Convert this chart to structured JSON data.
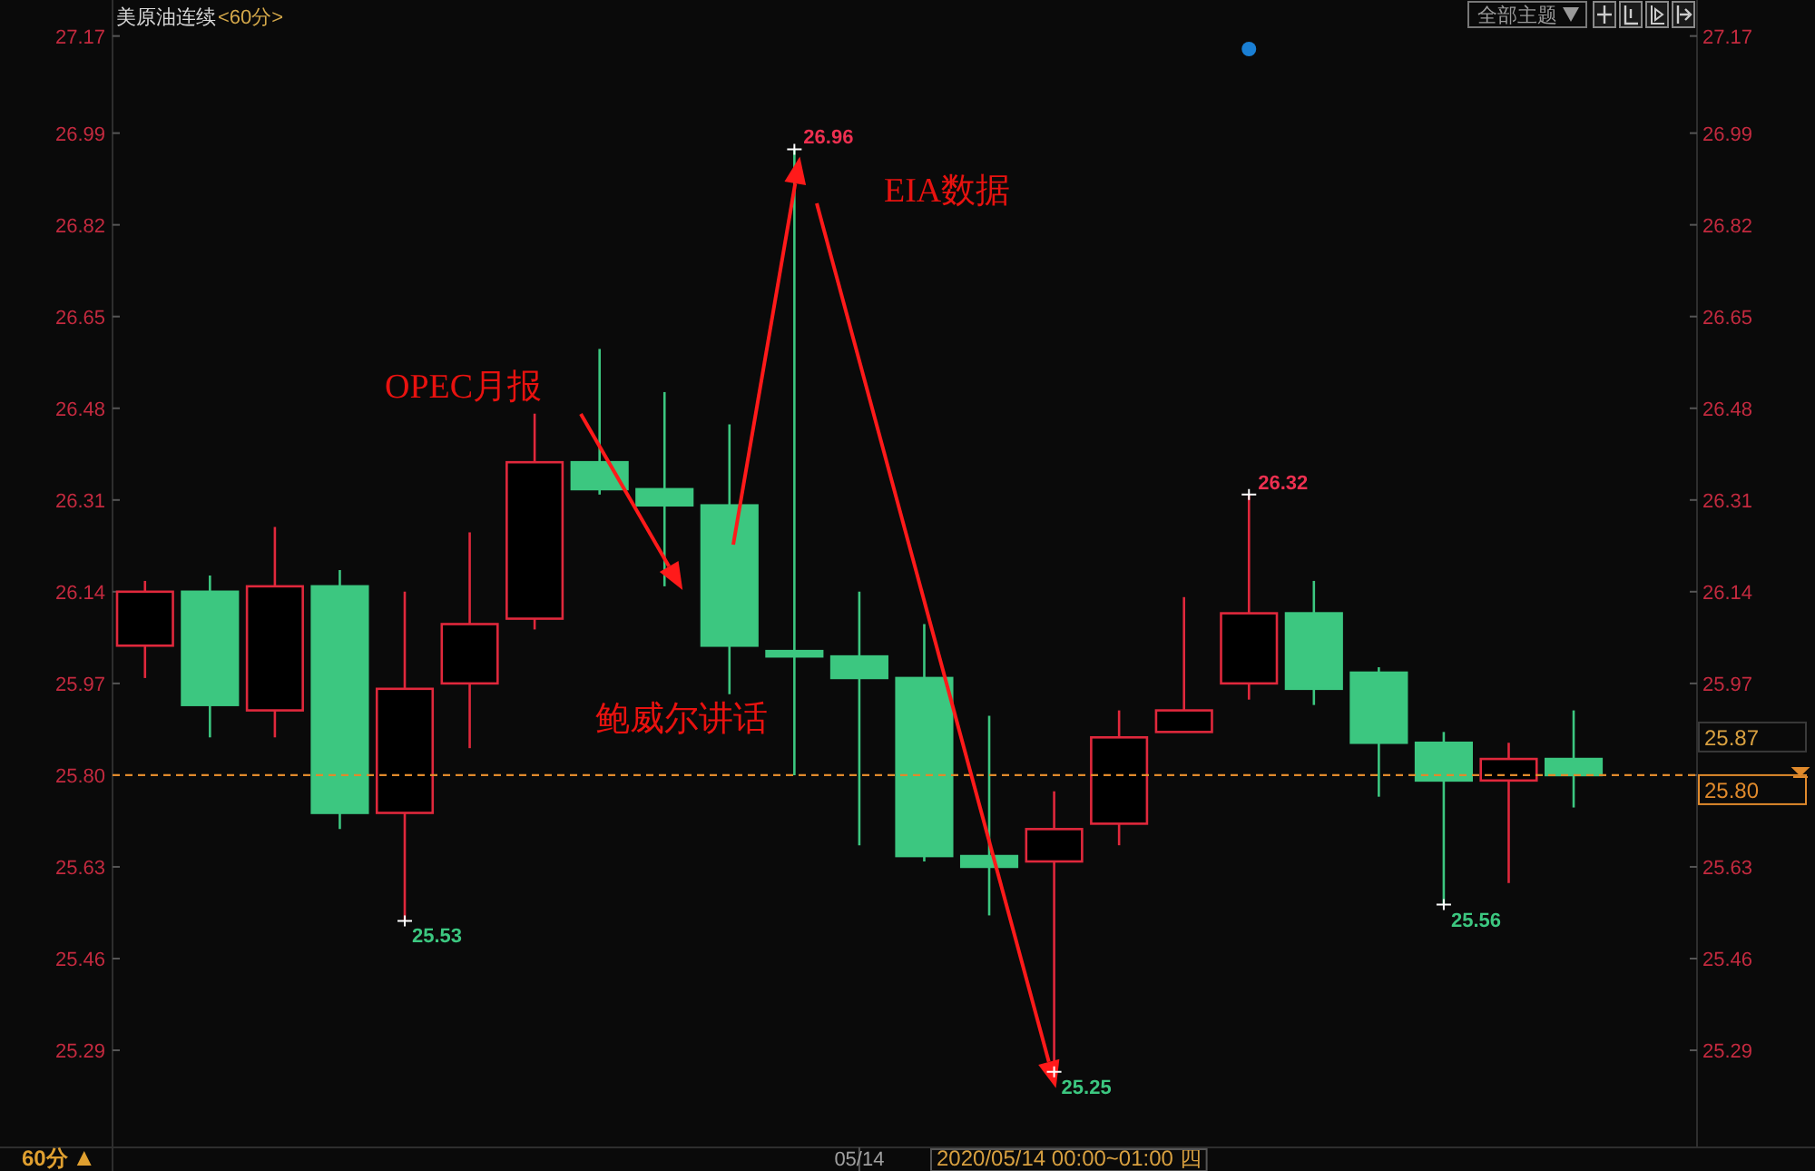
{
  "chart_data": {
    "type": "candlestick",
    "title": "美原油连续",
    "subtitle": "<60分>",
    "categories": [
      null,
      null,
      null,
      null,
      null,
      null,
      null,
      null,
      null,
      null,
      null,
      "05/14",
      null,
      null,
      null,
      null,
      null,
      null,
      null,
      null,
      null,
      null,
      null
    ],
    "ohlc": [
      [
        26.04,
        26.16,
        25.98,
        26.14
      ],
      [
        26.14,
        26.17,
        25.87,
        25.93
      ],
      [
        25.92,
        26.26,
        25.87,
        26.15
      ],
      [
        26.15,
        26.18,
        25.7,
        25.73
      ],
      [
        25.73,
        26.14,
        25.53,
        25.96
      ],
      [
        25.97,
        26.25,
        25.85,
        26.08
      ],
      [
        26.09,
        26.47,
        26.07,
        26.38
      ],
      [
        26.38,
        26.59,
        26.32,
        26.33
      ],
      [
        26.33,
        26.51,
        26.15,
        26.3
      ],
      [
        26.3,
        26.45,
        25.95,
        26.04
      ],
      [
        26.03,
        26.96,
        25.8,
        26.02
      ],
      [
        26.02,
        26.14,
        25.67,
        25.98
      ],
      [
        25.98,
        26.08,
        25.64,
        25.65
      ],
      [
        25.65,
        25.91,
        25.54,
        25.63
      ],
      [
        25.64,
        25.77,
        25.25,
        25.7
      ],
      [
        25.71,
        25.92,
        25.67,
        25.87
      ],
      [
        25.88,
        26.13,
        25.88,
        25.92
      ],
      [
        25.97,
        26.32,
        25.94,
        26.1
      ],
      [
        26.1,
        26.16,
        25.93,
        25.96
      ],
      [
        25.99,
        26.0,
        25.76,
        25.86
      ],
      [
        25.86,
        25.88,
        25.56,
        25.79
      ],
      [
        25.79,
        25.86,
        25.6,
        25.83
      ],
      [
        25.83,
        25.92,
        25.74,
        25.8
      ]
    ],
    "colors": [
      "#e0283c",
      "#3cc780",
      "#e0283c",
      "#3cc780",
      "#e0283c",
      "#e0283c",
      "#e0283c",
      "#3cc780",
      "#3cc780",
      "#3cc780",
      "#3cc780",
      "#3cc780",
      "#3cc780",
      "#3cc780",
      "#e0283c",
      "#e0283c",
      "#e0283c",
      "#e0283c",
      "#3cc780",
      "#3cc780",
      "#3cc780",
      "#e0283c",
      "#3cc780"
    ],
    "ylim": [
      25.11,
      27.23
    ],
    "yticks": [
      27.17,
      26.99,
      26.82,
      26.65,
      26.48,
      26.31,
      26.14,
      25.97,
      {
        "value": 25.8,
        "label": "25.80"
      },
      25.63,
      25.46,
      25.29
    ],
    "y2lim": [
      25.11,
      27.23
    ],
    "y2ticks": [
      27.17,
      26.99,
      26.82,
      26.65,
      26.48,
      26.31,
      26.14,
      25.97,
      {
        "value": 25.8,
        "label": null
      },
      25.63,
      25.46,
      25.29
    ],
    "ref_lines": [
      {
        "axis": "y",
        "value": 25.8,
        "label": "25.80",
        "color": "#e08a2c",
        "line_style": "dashed"
      }
    ],
    "annotations": [
      "OPEC月报",
      "鲍威尔讲话",
      "EIA数据",
      "26.96",
      "25.53",
      "25.25",
      "26.32",
      "25.56",
      "25.87",
      "2020/05/14 00:00~01:00 四",
      "60分",
      "全部主题"
    ]
  }
}
